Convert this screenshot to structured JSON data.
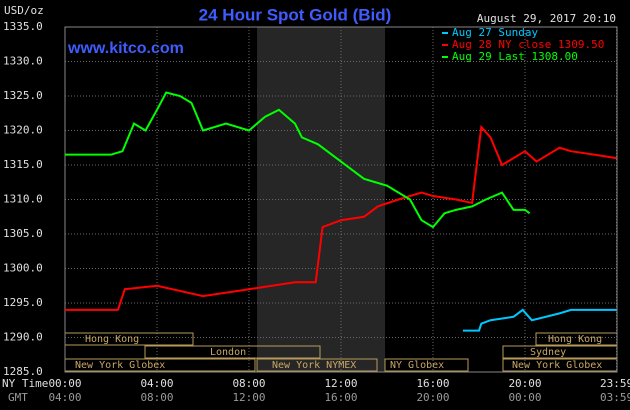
{
  "chart_data": {
    "type": "line",
    "title": "24 Hour Spot Gold (Bid)",
    "y_label": "USD/oz",
    "watermark": "www.kitco.com",
    "timestamp": "August 29, 2017 20:10",
    "x_label": "NY Time",
    "x2_label": "GMT",
    "xlim": [
      0,
      24
    ],
    "xticks": [
      {
        "value": 0,
        "label": "00:00"
      },
      {
        "value": 4,
        "label": "04:00"
      },
      {
        "value": 8,
        "label": "08:00"
      },
      {
        "value": 12,
        "label": "12:00"
      },
      {
        "value": 16,
        "label": "16:00"
      },
      {
        "value": 20,
        "label": "20:00"
      },
      {
        "value": 23.98,
        "label": "23:59"
      }
    ],
    "x2ticks": [
      {
        "value": 0,
        "label": "04:00"
      },
      {
        "value": 4,
        "label": "08:00"
      },
      {
        "value": 8,
        "label": "12:00"
      },
      {
        "value": 12,
        "label": "16:00"
      },
      {
        "value": 16,
        "label": "20:00"
      },
      {
        "value": 20,
        "label": "00:00"
      },
      {
        "value": 23.98,
        "label": "03:59"
      }
    ],
    "ylim": [
      1285,
      1335
    ],
    "yticks": [
      {
        "value": 1285,
        "label": "1285.0"
      },
      {
        "value": 1290,
        "label": "1290.0"
      },
      {
        "value": 1295,
        "label": "1295.0"
      },
      {
        "value": 1300,
        "label": "1300.0"
      },
      {
        "value": 1305,
        "label": "1305.0"
      },
      {
        "value": 1310,
        "label": "1310.0"
      },
      {
        "value": 1315,
        "label": "1315.0"
      },
      {
        "value": 1320,
        "label": "1320.0"
      },
      {
        "value": 1325,
        "label": "1325.0"
      },
      {
        "value": 1330,
        "label": "1330.0"
      },
      {
        "value": 1335,
        "label": "1335.0"
      }
    ],
    "grid": true,
    "sessions": [
      "Hong Kong",
      "London",
      "New York Globex",
      "New York NYMEX",
      "NY Globex",
      "Hong Kong",
      "Sydney",
      "New York Globex"
    ],
    "series": [
      {
        "name": "Aug 27 Sunday",
        "color": "#00c8ff",
        "x": [
          17.3,
          18.0,
          18.1,
          18.5,
          19.5,
          19.9,
          20.3,
          21.5,
          22,
          23.98
        ],
        "values": [
          1291,
          1291,
          1292,
          1292.5,
          1293,
          1294,
          1292.5,
          1293.5,
          1294,
          1294
        ]
      },
      {
        "name": "Aug 28 NY close 1309.50",
        "color": "#ff0000",
        "x": [
          0,
          2.3,
          2.6,
          4,
          6,
          8,
          9,
          10,
          10.9,
          11.2,
          12,
          13,
          13.6,
          14.5,
          15.5,
          16,
          17,
          17.7,
          18.1,
          18.5,
          19,
          20,
          20.5,
          21.5,
          22,
          23,
          23.98
        ],
        "values": [
          1294,
          1294,
          1297,
          1297.5,
          1296,
          1297,
          1297.5,
          1298,
          1298,
          1306,
          1307,
          1307.5,
          1309,
          1310,
          1311,
          1310.5,
          1310,
          1309.5,
          1320.5,
          1319,
          1315,
          1317,
          1315.5,
          1317.5,
          1317,
          1316.5,
          1316
        ]
      },
      {
        "name": "Aug 29 Last 1308.00",
        "color": "#00ff00",
        "x": [
          0,
          2,
          2.5,
          3,
          3.5,
          4,
          4.4,
          5,
          5.5,
          6,
          7,
          8,
          8.7,
          9.3,
          10,
          10.3,
          11,
          12,
          13,
          14,
          15,
          15.5,
          16,
          16.5,
          17,
          17.7,
          18.3,
          19,
          19.5,
          20,
          20.2
        ],
        "values": [
          1316.5,
          1316.5,
          1317,
          1321,
          1320,
          1323,
          1325.5,
          1325,
          1324,
          1320,
          1321,
          1320,
          1322,
          1323,
          1321,
          1319,
          1318,
          1315.5,
          1313,
          1312,
          1310,
          1307,
          1306,
          1308,
          1308.5,
          1309,
          1310,
          1311,
          1308.5,
          1308.5,
          1308
        ]
      }
    ]
  }
}
